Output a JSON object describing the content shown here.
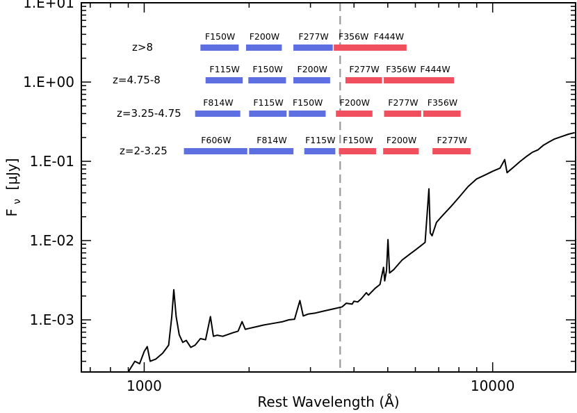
{
  "chart_data": {
    "type": "line",
    "title": "",
    "xlabel": "Rest Wavelength (Å)",
    "ylabel": "F",
    "ylabel_sub": "ν",
    "ylabel_unit": "[μJy]",
    "xscale": "log",
    "yscale": "log",
    "xlim": [
      660,
      17300
    ],
    "ylim": [
      0.00022,
      10
    ],
    "x_ticks": [
      {
        "value": 1000,
        "label": "1000"
      },
      {
        "value": 10000,
        "label": "10000"
      }
    ],
    "y_ticks": [
      {
        "value": 10,
        "label": "1.E+01"
      },
      {
        "value": 1,
        "label": "1.E+00"
      },
      {
        "value": 0.1,
        "label": "1.E-01"
      },
      {
        "value": 0.01,
        "label": "1.E-02"
      },
      {
        "value": 0.001,
        "label": "1.E-03"
      }
    ],
    "reference_line": {
      "x": 3650,
      "style": "dashed",
      "color": "#999999"
    },
    "series": [
      {
        "name": "spectrum",
        "color": "#000000",
        "x": [
          900,
          940,
          970,
          1000,
          1020,
          1040,
          1080,
          1130,
          1175,
          1200,
          1216,
          1235,
          1260,
          1290,
          1320,
          1360,
          1400,
          1450,
          1500,
          1549,
          1580,
          1620,
          1680,
          1750,
          1800,
          1860,
          1909,
          1950,
          2000,
          2100,
          2200,
          2300,
          2400,
          2500,
          2600,
          2700,
          2798,
          2860,
          2950,
          3100,
          3300,
          3500,
          3700,
          3800,
          3950,
          4000,
          4100,
          4200,
          4340,
          4400,
          4600,
          4750,
          4861,
          4900,
          4959,
          5007,
          5060,
          5200,
          5500,
          5800,
          6000,
          6200,
          6400,
          6563,
          6620,
          6700,
          6900,
          7200,
          7600,
          8000,
          8500,
          9000,
          9500,
          10000,
          10500,
          10830,
          11000,
          11500,
          12000,
          12500,
          13000,
          13500,
          14000,
          14500,
          15000,
          15500,
          16000,
          16500,
          17200
        ],
        "y": [
          0.00022,
          0.0003,
          0.00028,
          0.0004,
          0.00046,
          0.0003,
          0.00032,
          0.00038,
          0.00048,
          0.0011,
          0.0024,
          0.0011,
          0.00065,
          0.00052,
          0.00055,
          0.00045,
          0.00048,
          0.00058,
          0.00056,
          0.0011,
          0.00062,
          0.00064,
          0.00062,
          0.00066,
          0.00069,
          0.00072,
          0.00095,
          0.00076,
          0.00078,
          0.00082,
          0.00086,
          0.00089,
          0.00092,
          0.00095,
          0.001,
          0.00102,
          0.00175,
          0.00112,
          0.00118,
          0.00122,
          0.0013,
          0.00138,
          0.00146,
          0.00162,
          0.00158,
          0.00172,
          0.00168,
          0.00185,
          0.0022,
          0.00205,
          0.0025,
          0.0028,
          0.0046,
          0.0031,
          0.0042,
          0.0103,
          0.0039,
          0.0043,
          0.0057,
          0.0068,
          0.0076,
          0.0085,
          0.0095,
          0.045,
          0.0125,
          0.0115,
          0.017,
          0.021,
          0.027,
          0.035,
          0.048,
          0.06,
          0.067,
          0.075,
          0.082,
          0.105,
          0.072,
          0.085,
          0.1,
          0.115,
          0.13,
          0.14,
          0.16,
          0.175,
          0.19,
          0.2,
          0.21,
          0.22,
          0.23
        ]
      }
    ],
    "filter_rows": [
      {
        "label": "z>8",
        "filters": [
          {
            "name": "F150W",
            "lo": 1450,
            "hi": 1880,
            "color": "#5e6fe2"
          },
          {
            "name": "F200W",
            "lo": 1960,
            "hi": 2500,
            "color": "#5e6fe2"
          },
          {
            "name": "F277W",
            "lo": 2680,
            "hi": 3500,
            "color": "#5e6fe2"
          },
          {
            "name": "F356W",
            "lo": 3500,
            "hi": 4550,
            "color": "#f0505e"
          },
          {
            "name": "F444W",
            "lo": 4450,
            "hi": 5700,
            "color": "#f0505e"
          }
        ]
      },
      {
        "label": "z=4.75-8",
        "filters": [
          {
            "name": "F115W",
            "lo": 1500,
            "hi": 1930,
            "color": "#5e6fe2"
          },
          {
            "name": "F150W",
            "lo": 1990,
            "hi": 2570,
            "color": "#5e6fe2"
          },
          {
            "name": "F200W",
            "lo": 2680,
            "hi": 3440,
            "color": "#5e6fe2"
          },
          {
            "name": "F277W",
            "lo": 3780,
            "hi": 4850,
            "color": "#f0505e"
          },
          {
            "name": "F356W",
            "lo": 4870,
            "hi": 6120,
            "color": "#f0505e"
          },
          {
            "name": "F444W",
            "lo": 6000,
            "hi": 7800,
            "color": "#f0505e"
          }
        ]
      },
      {
        "label": "z=3.25-4.75",
        "filters": [
          {
            "name": "F814W",
            "lo": 1400,
            "hi": 1900,
            "color": "#5e6fe2"
          },
          {
            "name": "F115W",
            "lo": 2000,
            "hi": 2580,
            "color": "#5e6fe2"
          },
          {
            "name": "F150W",
            "lo": 2600,
            "hi": 3340,
            "color": "#5e6fe2"
          },
          {
            "name": "F200W",
            "lo": 3550,
            "hi": 4550,
            "color": "#f0505e"
          },
          {
            "name": "F277W",
            "lo": 4880,
            "hi": 6280,
            "color": "#f0505e"
          },
          {
            "name": "F356W",
            "lo": 6320,
            "hi": 8150,
            "color": "#f0505e"
          }
        ]
      },
      {
        "label": "z=2-3.25",
        "filters": [
          {
            "name": "F606W",
            "lo": 1300,
            "hi": 1990,
            "color": "#5e6fe2"
          },
          {
            "name": "F814W",
            "lo": 2000,
            "hi": 2700,
            "color": "#5e6fe2"
          },
          {
            "name": "F115W",
            "lo": 2880,
            "hi": 3560,
            "color": "#5e6fe2"
          },
          {
            "name": "F150W",
            "lo": 3620,
            "hi": 4660,
            "color": "#f0505e"
          },
          {
            "name": "F200W",
            "lo": 4850,
            "hi": 6180,
            "color": "#f0505e"
          },
          {
            "name": "F277W",
            "lo": 6720,
            "hi": 8700,
            "color": "#f0505e"
          }
        ]
      }
    ]
  }
}
